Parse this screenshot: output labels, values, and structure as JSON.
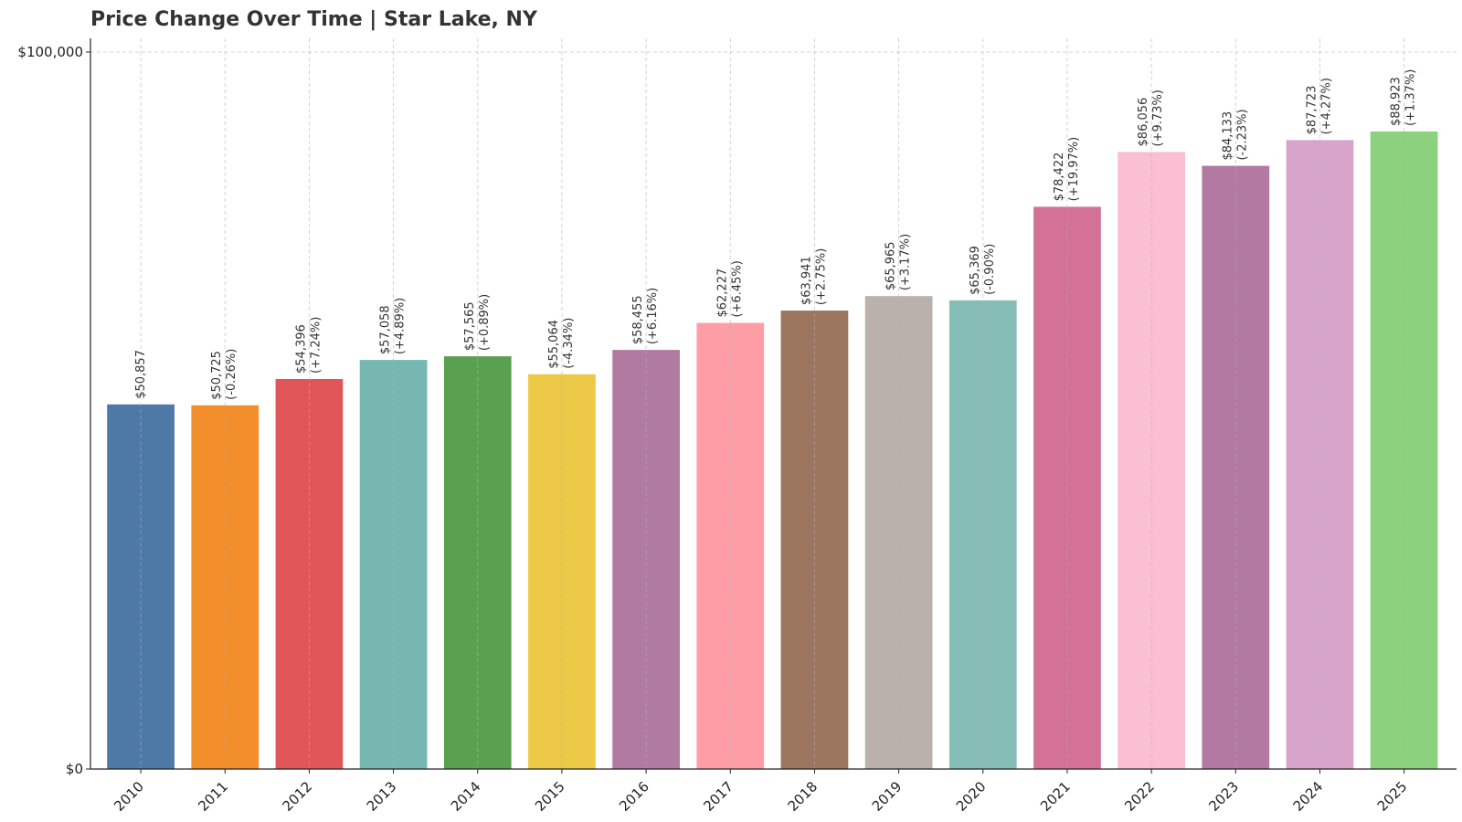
{
  "chart_data": {
    "type": "bar",
    "title": "Price Change Over Time | Star Lake, NY",
    "xlabel": "",
    "ylabel": "",
    "ylim": [
      0,
      100000
    ],
    "y_ticks": [
      {
        "value": 0,
        "label": "$0"
      },
      {
        "value": 100000,
        "label": "$100,000"
      }
    ],
    "grid": true,
    "categories": [
      "2010",
      "2011",
      "2012",
      "2013",
      "2014",
      "2015",
      "2016",
      "2017",
      "2018",
      "2019",
      "2020",
      "2021",
      "2022",
      "2023",
      "2024",
      "2025"
    ],
    "values": [
      50857,
      50725,
      54396,
      57058,
      57565,
      55064,
      58455,
      62227,
      63941,
      65965,
      65369,
      78422,
      86056,
      84133,
      87723,
      88923
    ],
    "value_labels": [
      "$50,857",
      "$50,725",
      "$54,396",
      "$57,058",
      "$57,565",
      "$55,064",
      "$58,455",
      "$62,227",
      "$63,941",
      "$65,965",
      "$65,369",
      "$78,422",
      "$86,056",
      "$84,133",
      "$87,723",
      "$88,923"
    ],
    "change_labels": [
      "",
      "(-0.26%)",
      "(+7.24%)",
      "(+4.89%)",
      "(+0.89%)",
      "(-4.34%)",
      "(+6.16%)",
      "(+6.45%)",
      "(+2.75%)",
      "(+3.17%)",
      "(-0.90%)",
      "(+19.97%)",
      "(+9.73%)",
      "(-2.23%)",
      "(+4.27%)",
      "(+1.37%)"
    ],
    "colors": [
      "#4e79a7",
      "#f28e2b",
      "#e15759",
      "#76b7b2",
      "#59a14f",
      "#edc948",
      "#b07aa1",
      "#ff9da7",
      "#9c755f",
      "#bab0ac",
      "#86bcb6",
      "#d37295",
      "#fabfd2",
      "#b279a2",
      "#d6a5c9",
      "#8cd17d"
    ]
  }
}
